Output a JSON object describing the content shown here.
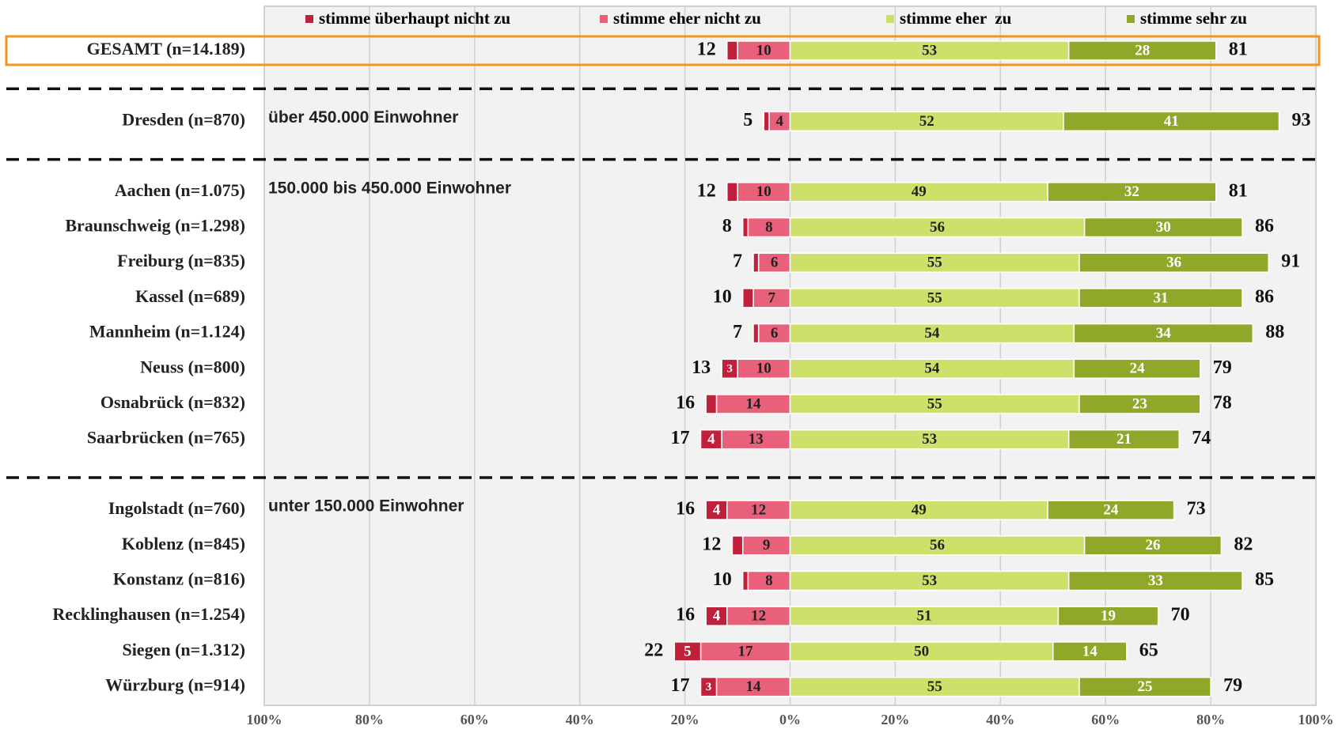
{
  "chart_data": {
    "type": "diverging_bar",
    "categories": [
      "GESAMT (n=14.189)",
      "Dresden (n=870)",
      "Aachen (n=1.075)",
      "Braunschweig (n=1.298)",
      "Freiburg (n=835)",
      "Kassel (n=689)",
      "Mannheim (n=1.124)",
      "Neuss (n=800)",
      "Osnabrück (n=832)",
      "Saarbrücken (n=765)",
      "Ingolstadt (n=760)",
      "Koblenz (n=845)",
      "Konstanz (n=816)",
      "Recklinghausen (n=1.254)",
      "Siegen (n=1.312)",
      "Würzburg (n=914)"
    ],
    "series": [
      {
        "name": "stimme überhaupt nicht zu",
        "color": "#c0203a",
        "side": "left",
        "values": [
          2,
          1,
          2,
          1,
          1,
          2,
          1,
          3,
          2,
          4,
          4,
          2,
          1,
          4,
          5,
          3
        ]
      },
      {
        "name": "stimme eher nicht zu",
        "color": "#e8607a",
        "side": "left",
        "values": [
          10,
          4,
          10,
          8,
          6,
          7,
          6,
          10,
          14,
          13,
          12,
          9,
          8,
          12,
          17,
          14
        ]
      },
      {
        "name": "stimme eher  zu",
        "color": "#cfe06a",
        "side": "right",
        "values": [
          53,
          52,
          49,
          56,
          55,
          55,
          54,
          54,
          55,
          53,
          49,
          56,
          53,
          51,
          50,
          55
        ]
      },
      {
        "name": "stimme sehr zu",
        "color": "#8fa829",
        "side": "right",
        "values": [
          28,
          41,
          32,
          30,
          36,
          31,
          34,
          24,
          23,
          21,
          24,
          26,
          33,
          19,
          14,
          25
        ]
      }
    ],
    "left_totals": [
      12,
      5,
      12,
      8,
      7,
      10,
      7,
      13,
      16,
      17,
      16,
      12,
      10,
      16,
      22,
      17
    ],
    "right_totals": [
      81,
      93,
      81,
      86,
      91,
      86,
      88,
      79,
      78,
      74,
      73,
      82,
      85,
      70,
      65,
      79
    ],
    "annotations": [
      {
        "text": "über 450.000 Einwohner",
        "category": "Dresden (n=870)"
      },
      {
        "text": "150.000 bis 450.000 Einwohner",
        "category": "Aachen (n=1.075)"
      },
      {
        "text": "unter 150.000 Einwohner",
        "category": "Ingolstadt (n=760)"
      }
    ],
    "highlight": {
      "category": "GESAMT (n=14.189)",
      "color": "#f0961e"
    },
    "xlim": [
      -100,
      100
    ],
    "xticks": [
      {
        "value": -100,
        "label": "100%"
      },
      {
        "value": -80,
        "label": "80%"
      },
      {
        "value": -60,
        "label": "60%"
      },
      {
        "value": -40,
        "label": "40%"
      },
      {
        "value": -20,
        "label": "20%"
      },
      {
        "value": 0,
        "label": "0%"
      },
      {
        "value": 20,
        "label": "20%"
      },
      {
        "value": 40,
        "label": "40%"
      },
      {
        "value": 60,
        "label": "60%"
      },
      {
        "value": 80,
        "label": "80%"
      },
      {
        "value": 100,
        "label": "100%"
      }
    ],
    "grid": true,
    "legend": "top"
  }
}
